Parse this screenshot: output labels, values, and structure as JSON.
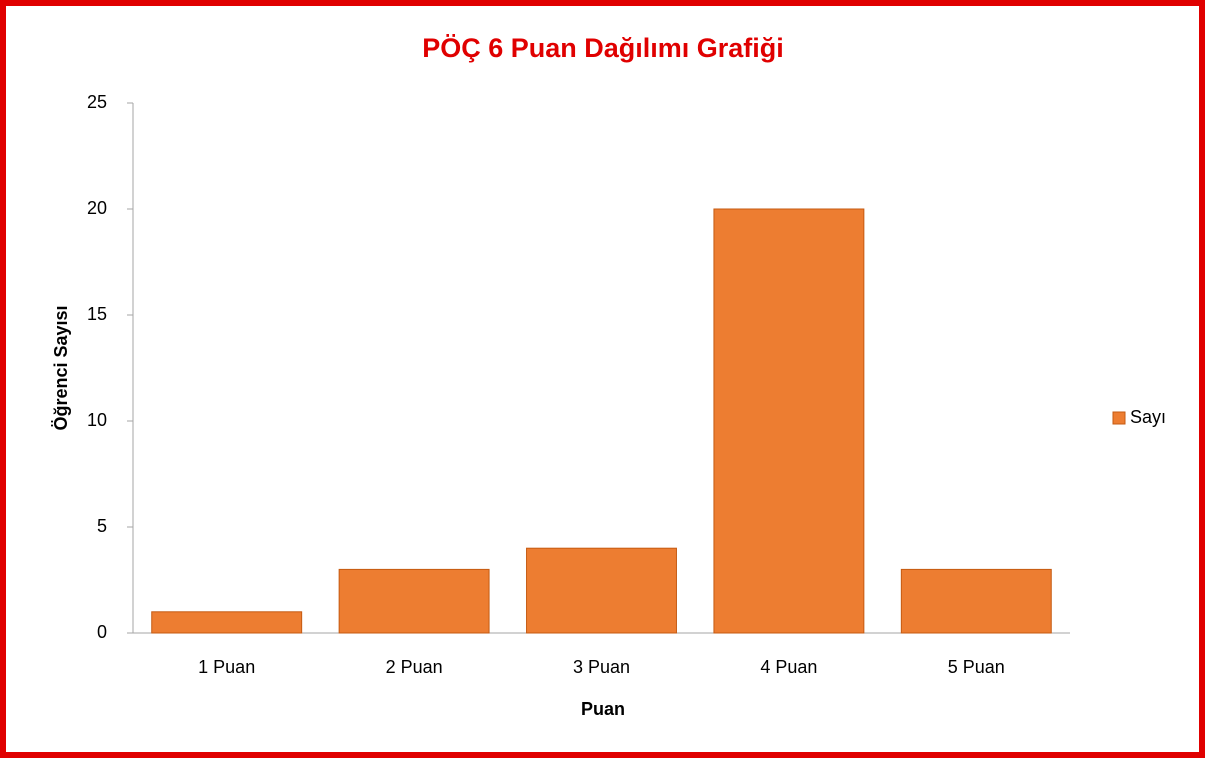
{
  "chart_data": {
    "type": "bar",
    "title": "PÖÇ 6 Puan Dağılımı Grafiği",
    "x_label": "Puan",
    "y_label": "Öğrenci Sayısı",
    "categories": [
      "1 Puan",
      "2 Puan",
      "3 Puan",
      "4 Puan",
      "5 Puan"
    ],
    "series": [
      {
        "name": "Sayı",
        "color": "#ed7d31",
        "values": [
          1,
          3,
          4,
          20,
          3
        ]
      }
    ],
    "ylim": [
      0,
      25
    ],
    "yticks": [
      0,
      5,
      10,
      15,
      20,
      25
    ],
    "grid": false,
    "legend": "right"
  }
}
